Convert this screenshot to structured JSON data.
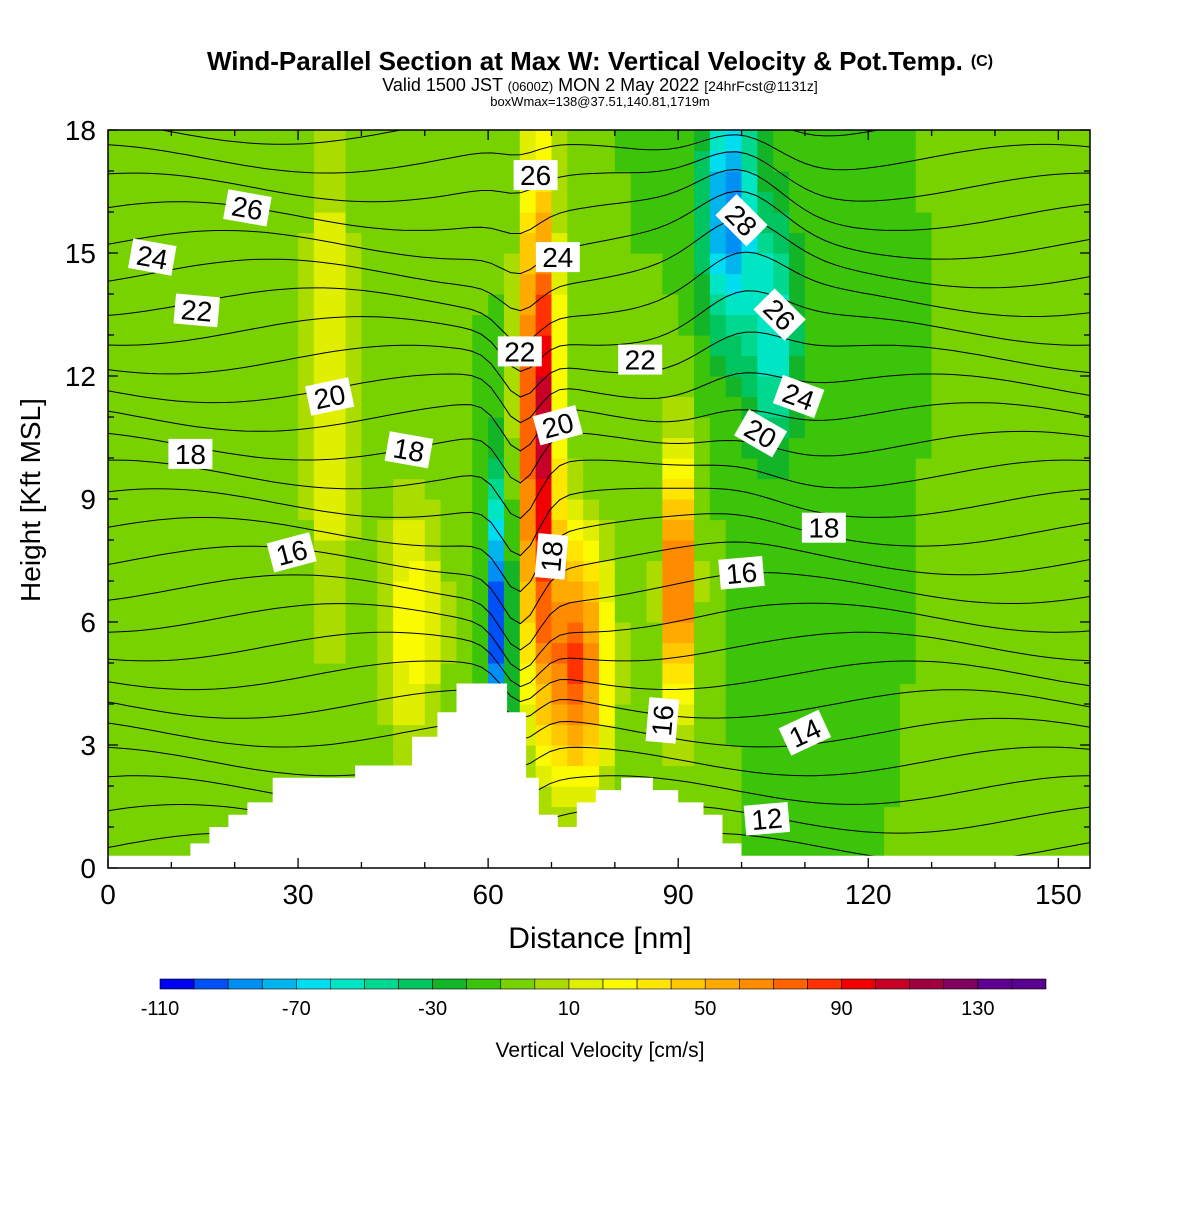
{
  "chart_data": {
    "type": "heatmap",
    "title": "Wind-Parallel Section at Max W: Vertical Velocity & Pot.Temp.",
    "title_mark": "(C)",
    "subtitle_parts": [
      "Valid 1500 JST ",
      "(0600Z)",
      " MON 2 May 2022 ",
      "[24hrFcst@1131z]"
    ],
    "subtitle2": "boxWmax=138@37.51,140.81,1719m",
    "xlabel": "Distance [nm]",
    "ylabel": "Height [Kft MSL]",
    "xlim": [
      0,
      155
    ],
    "ylim": [
      0,
      18
    ],
    "xticks": [
      0,
      30,
      60,
      90,
      120,
      150
    ],
    "yticks": [
      0,
      3,
      6,
      9,
      12,
      15,
      18
    ],
    "colorbar": {
      "label": "Vertical Velocity [cm/s]",
      "min": -110,
      "max": 150,
      "step": 10,
      "tick_values": [
        -110,
        -70,
        -30,
        10,
        50,
        90,
        130
      ],
      "tick_labels": [
        "-110",
        "-70",
        "-30",
        "10",
        "50",
        "90",
        "130"
      ],
      "colors": [
        "#0000f0",
        "#0050f8",
        "#0090f5",
        "#00b4ee",
        "#00dcf0",
        "#00e6c4",
        "#00d890",
        "#00c460",
        "#14b428",
        "#3cc40a",
        "#78d200",
        "#aadc00",
        "#e0ee00",
        "#fafa00",
        "#ffe600",
        "#ffc800",
        "#ffaa00",
        "#ff8c00",
        "#ff6400",
        "#ff3200",
        "#f00000",
        "#c80028",
        "#a00040",
        "#800060",
        "#600090",
        "#5a0090"
      ]
    },
    "theta_contour_labels": [
      {
        "x": 7,
        "y": 14.9,
        "text": "24",
        "angle": 10
      },
      {
        "x": 22,
        "y": 16.1,
        "text": "26",
        "angle": 10
      },
      {
        "x": 14,
        "y": 13.6,
        "text": "22",
        "angle": 5
      },
      {
        "x": 35,
        "y": 11.5,
        "text": "20",
        "angle": -12
      },
      {
        "x": 13,
        "y": 10.1,
        "text": "18",
        "angle": 0
      },
      {
        "x": 29,
        "y": 7.7,
        "text": "16",
        "angle": -15
      },
      {
        "x": 47.5,
        "y": 10.2,
        "text": "18",
        "angle": 10
      },
      {
        "x": 67.5,
        "y": 16.9,
        "text": "26",
        "angle": 0
      },
      {
        "x": 71,
        "y": 14.9,
        "text": "24",
        "angle": 0
      },
      {
        "x": 65,
        "y": 12.6,
        "text": "22",
        "angle": 0
      },
      {
        "x": 71,
        "y": 10.8,
        "text": "20",
        "angle": -15
      },
      {
        "x": 70,
        "y": 7.6,
        "text": "18",
        "angle": -85
      },
      {
        "x": 84,
        "y": 12.4,
        "text": "22",
        "angle": 0
      },
      {
        "x": 100,
        "y": 15.8,
        "text": "28",
        "angle": 45
      },
      {
        "x": 106,
        "y": 13.5,
        "text": "26",
        "angle": 45
      },
      {
        "x": 109,
        "y": 11.5,
        "text": "24",
        "angle": 20
      },
      {
        "x": 103,
        "y": 10.6,
        "text": "20",
        "angle": 30
      },
      {
        "x": 113,
        "y": 8.3,
        "text": "18",
        "angle": 0
      },
      {
        "x": 100,
        "y": 7.2,
        "text": "16",
        "angle": -5
      },
      {
        "x": 87.5,
        "y": 3.6,
        "text": "16",
        "angle": -85
      },
      {
        "x": 110,
        "y": 3.3,
        "text": "14",
        "angle": -25
      },
      {
        "x": 104,
        "y": 1.2,
        "text": "12",
        "angle": -5
      }
    ],
    "terrain_profile": [
      [
        0,
        0.3
      ],
      [
        13,
        0.3
      ],
      [
        13,
        0.6
      ],
      [
        16,
        0.6
      ],
      [
        16,
        1.0
      ],
      [
        19,
        1.0
      ],
      [
        19,
        1.3
      ],
      [
        22,
        1.3
      ],
      [
        22,
        1.6
      ],
      [
        26,
        1.6
      ],
      [
        26,
        2.2
      ],
      [
        39,
        2.2
      ],
      [
        39,
        2.5
      ],
      [
        48,
        2.5
      ],
      [
        48,
        3.2
      ],
      [
        52,
        3.2
      ],
      [
        52,
        3.8
      ],
      [
        55,
        3.8
      ],
      [
        55,
        4.5
      ],
      [
        63,
        4.5
      ],
      [
        63,
        3.8
      ],
      [
        66,
        3.8
      ],
      [
        66,
        2.2
      ],
      [
        68,
        2.2
      ],
      [
        68,
        1.3
      ],
      [
        71,
        1.3
      ],
      [
        71,
        1.0
      ],
      [
        74,
        1.0
      ],
      [
        74,
        1.6
      ],
      [
        77,
        1.6
      ],
      [
        77,
        1.9
      ],
      [
        81,
        1.9
      ],
      [
        81,
        2.2
      ],
      [
        86,
        2.2
      ],
      [
        86,
        1.9
      ],
      [
        90,
        1.9
      ],
      [
        90,
        1.6
      ],
      [
        94,
        1.6
      ],
      [
        94,
        1.3
      ],
      [
        97,
        1.3
      ],
      [
        97,
        0.6
      ],
      [
        100,
        0.6
      ],
      [
        100,
        0.3
      ],
      [
        155,
        0.3
      ]
    ],
    "w_features": [
      {
        "x": 0,
        "z": 0,
        "w": -10
      },
      {
        "x": 35,
        "z": 12,
        "w": 30,
        "sx": 4,
        "sz": 7
      },
      {
        "x": 48,
        "z": 6,
        "w": 40,
        "sx": 5,
        "sz": 3
      },
      {
        "x": 68,
        "z": 11,
        "w": 120,
        "sx": 3,
        "sz": 6
      },
      {
        "x": 74,
        "z": 5,
        "w": 90,
        "sx": 5,
        "sz": 3
      },
      {
        "x": 90,
        "z": 7,
        "w": 100,
        "sx": 2.5,
        "sz": 3
      },
      {
        "x": 62,
        "z": 6,
        "w": -110,
        "sx": 1.5,
        "sz": 3.5
      },
      {
        "x": 98,
        "z": 16,
        "w": -80,
        "sx": 4,
        "sz": 3
      },
      {
        "x": 105,
        "z": 13,
        "w": -50,
        "sx": 4,
        "sz": 3
      }
    ]
  }
}
